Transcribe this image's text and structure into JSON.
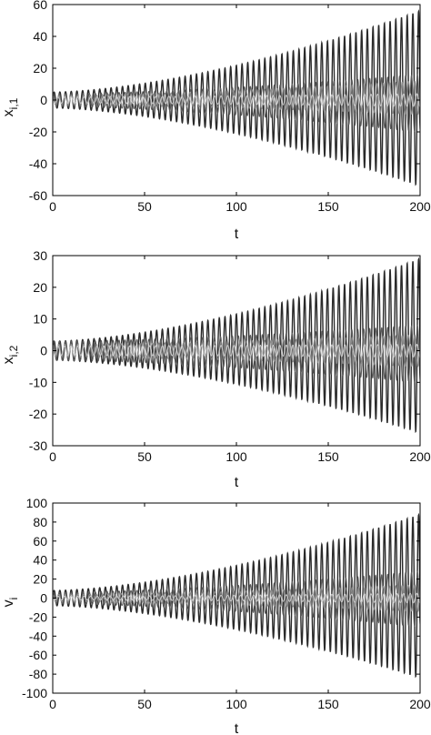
{
  "chart_data": [
    {
      "type": "line",
      "xlabel": "t",
      "ylabel": "x",
      "ylabel_sub": "i,1",
      "xlim": [
        0,
        200
      ],
      "ylim": [
        -60,
        60
      ],
      "x_ticks": [
        0,
        50,
        100,
        150,
        200
      ],
      "y_ticks": [
        -60,
        -40,
        -20,
        0,
        20,
        40,
        60
      ],
      "grid": false,
      "series": [
        {
          "x": [
            0,
            200
          ],
          "y_min": [
            -5,
            -54
          ],
          "y_max": [
            5,
            56
          ],
          "color": "#2a2a2a"
        },
        {
          "x": [
            0,
            200
          ],
          "y_min": [
            -4,
            -20
          ],
          "y_max": [
            4,
            16
          ],
          "color": "#5a5a5a"
        },
        {
          "x": [
            0,
            200
          ],
          "y_min": [
            -3,
            -9
          ],
          "y_max": [
            3,
            12
          ],
          "color": "#8a8a8a"
        },
        {
          "x": [
            0,
            200
          ],
          "y_min": [
            -2,
            -4
          ],
          "y_max": [
            2,
            4
          ],
          "color": "#c8c8c8"
        }
      ]
    },
    {
      "type": "line",
      "xlabel": "t",
      "ylabel": "x",
      "ylabel_sub": "i,2",
      "xlim": [
        0,
        200
      ],
      "ylim": [
        -30,
        30
      ],
      "x_ticks": [
        0,
        50,
        100,
        150,
        200
      ],
      "y_ticks": [
        -30,
        -20,
        -10,
        0,
        10,
        20,
        30
      ],
      "grid": false,
      "series": [
        {
          "x": [
            0,
            200
          ],
          "y_min": [
            -3,
            -26
          ],
          "y_max": [
            3,
            29
          ],
          "color": "#2a2a2a"
        },
        {
          "x": [
            0,
            200
          ],
          "y_min": [
            -3,
            -10
          ],
          "y_max": [
            3,
            8
          ],
          "color": "#5a5a5a"
        },
        {
          "x": [
            0,
            200
          ],
          "y_min": [
            -2,
            -5
          ],
          "y_max": [
            2,
            5
          ],
          "color": "#8a8a8a"
        },
        {
          "x": [
            0,
            200
          ],
          "y_min": [
            -1.5,
            -2
          ],
          "y_max": [
            1.5,
            2
          ],
          "color": "#c8c8c8"
        }
      ]
    },
    {
      "type": "line",
      "xlabel": "t",
      "ylabel": "v",
      "ylabel_sub": "i",
      "xlim": [
        0,
        200
      ],
      "ylim": [
        -100,
        100
      ],
      "x_ticks": [
        0,
        50,
        100,
        150,
        200
      ],
      "y_ticks": [
        -100,
        -80,
        -60,
        -40,
        -20,
        0,
        20,
        40,
        60,
        80,
        100
      ],
      "grid": false,
      "series": [
        {
          "x": [
            0,
            200
          ],
          "y_min": [
            -8,
            -84
          ],
          "y_max": [
            8,
            88
          ],
          "color": "#2a2a2a"
        },
        {
          "x": [
            0,
            200
          ],
          "y_min": [
            -6,
            -30
          ],
          "y_max": [
            6,
            28
          ],
          "color": "#5a5a5a"
        },
        {
          "x": [
            0,
            200
          ],
          "y_min": [
            -4,
            -14
          ],
          "y_max": [
            4,
            14
          ],
          "color": "#8a8a8a"
        },
        {
          "x": [
            0,
            200
          ],
          "y_min": [
            -2,
            -5
          ],
          "y_max": [
            2,
            5
          ],
          "color": "#c8c8c8"
        }
      ]
    }
  ]
}
